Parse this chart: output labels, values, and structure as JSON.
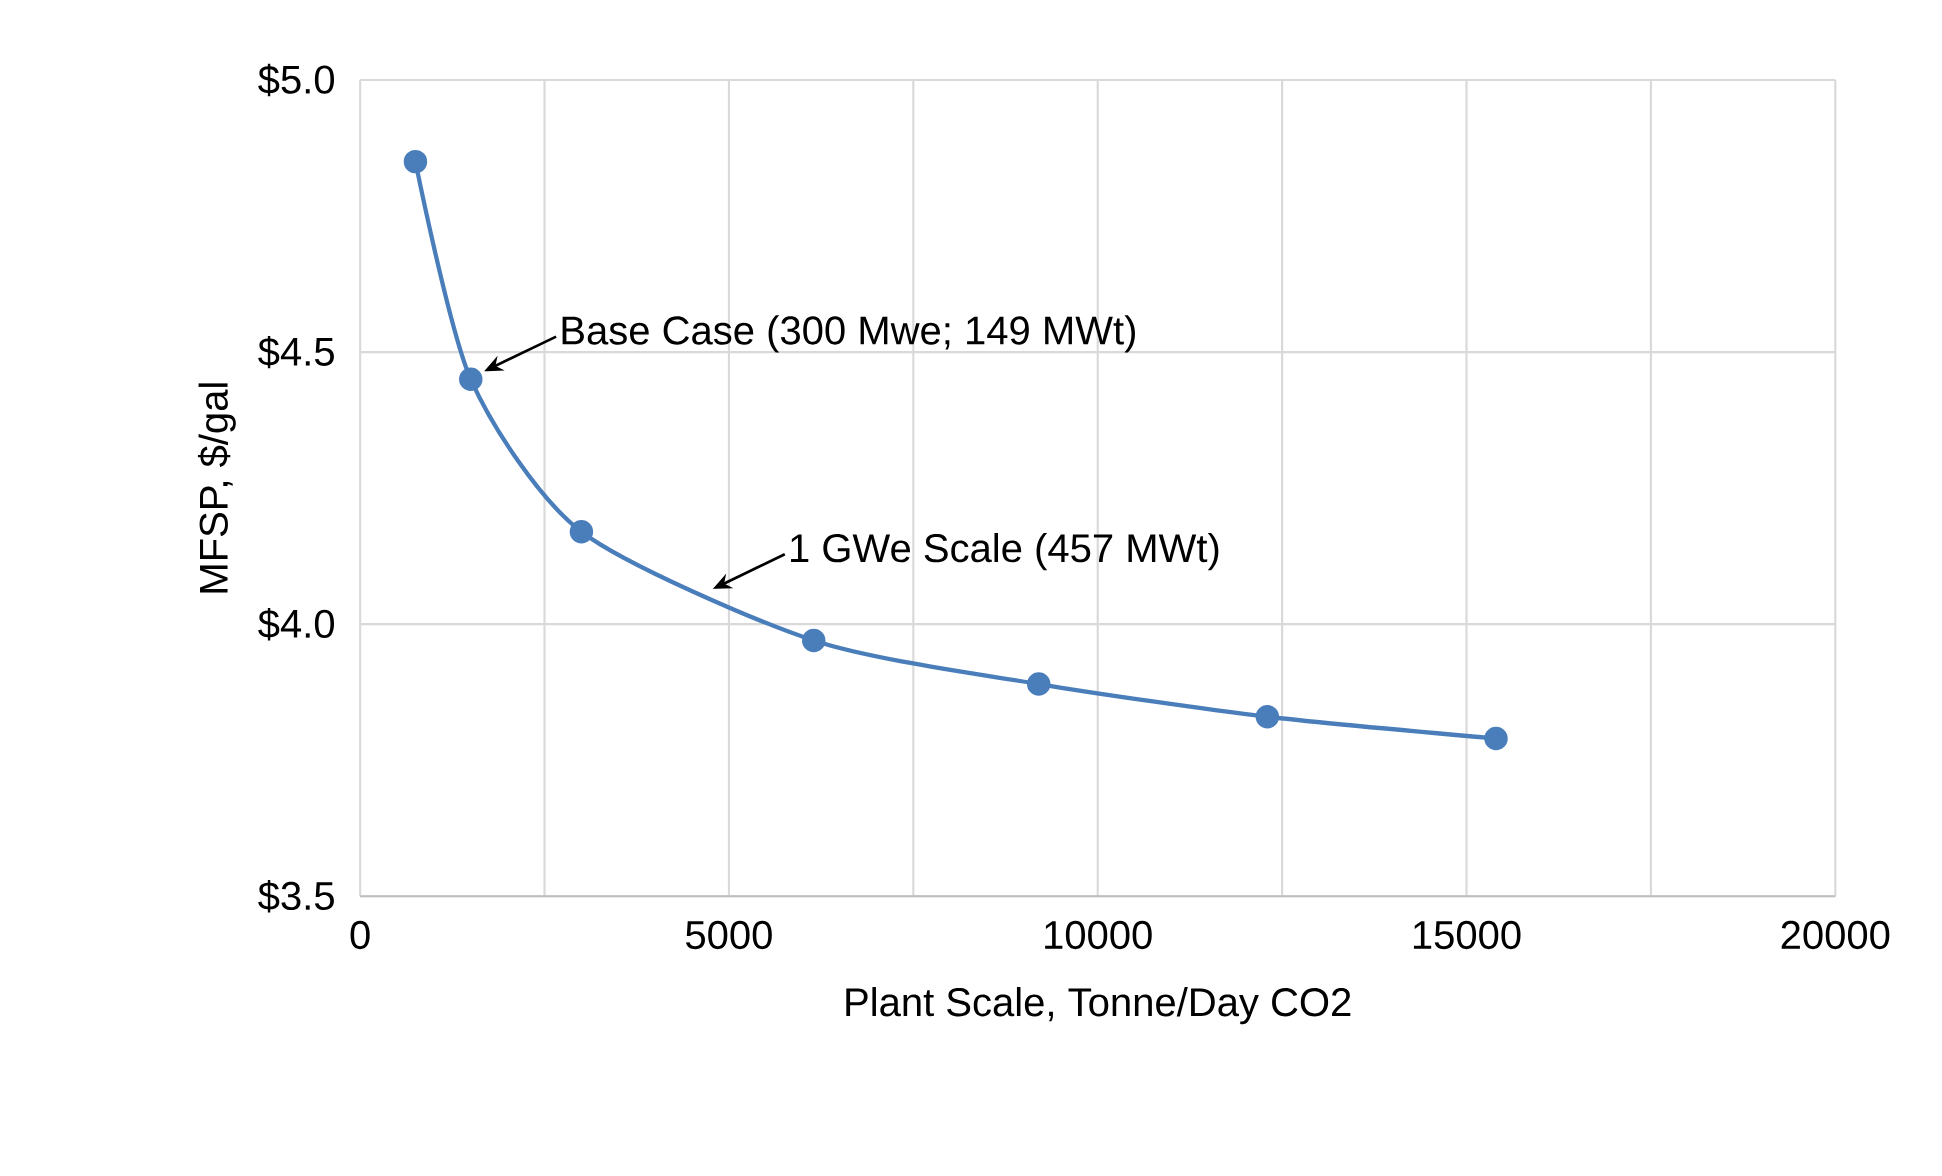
{
  "chart_data": {
    "type": "line",
    "xlabel": "Plant Scale, Tonne/Day CO2",
    "ylabel": "MFSP, $/gal",
    "x": [
      750,
      1500,
      3000,
      6150,
      9200,
      12300,
      15400
    ],
    "series": [
      {
        "color": "#4a7ebb",
        "values": [
          4.85,
          4.45,
          4.17,
          3.97,
          3.89,
          3.83,
          3.79
        ]
      }
    ],
    "xlim": [
      0,
      20000
    ],
    "ylim": [
      3.5,
      5.0
    ],
    "xticks": [
      0,
      {
        "value": 2500,
        "label": null
      },
      5000,
      {
        "value": 7500,
        "label": null
      },
      10000,
      {
        "value": 12500,
        "label": null
      },
      15000,
      {
        "value": 17500,
        "label": null
      },
      20000
    ],
    "yticks": [
      {
        "value": 3.5,
        "label": "$3.5"
      },
      {
        "value": 4.0,
        "label": "$4.0"
      },
      {
        "value": 4.5,
        "label": "$4.5"
      },
      {
        "value": 5.0,
        "label": "$5.0"
      }
    ],
    "grid": true,
    "marker": "circle",
    "annotations": [
      {
        "text": "Base Case (300 Mwe; 149 MWt)",
        "x": 1500,
        "y": 4.45
      },
      {
        "text": "1 GWe Scale (457 MWt)",
        "x": 4600,
        "y": 4.05
      }
    ]
  }
}
